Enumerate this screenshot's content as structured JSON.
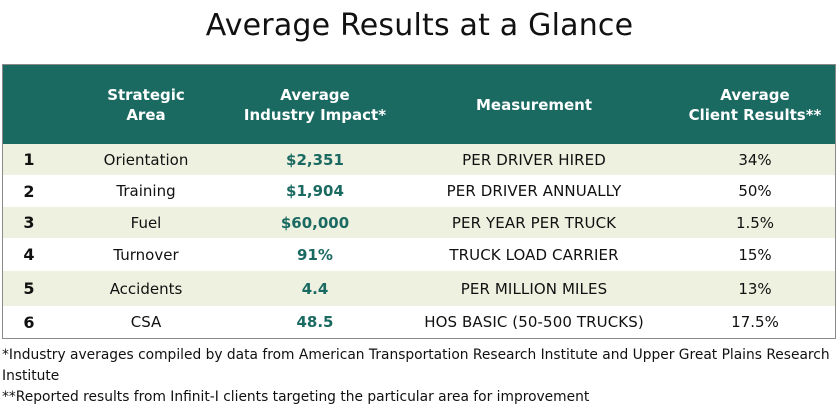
{
  "title": "Average Results at a Glance",
  "table": {
    "headers": {
      "strategic_area": "Strategic\nArea",
      "industry_impact": "Average\nIndustry Impact*",
      "measurement": "Measurement",
      "client_results": "Average\nClient Results**"
    },
    "rows": [
      {
        "num": "1",
        "area": "Orientation",
        "impact": "$2,351",
        "measurement": "PER DRIVER HIRED",
        "client": "34%"
      },
      {
        "num": "2",
        "area": "Training",
        "impact": "$1,904",
        "measurement": "PER DRIVER ANNUALLY",
        "client": "50%"
      },
      {
        "num": "3",
        "area": "Fuel",
        "impact": "$60,000",
        "measurement": "PER YEAR PER TRUCK",
        "client": "1.5%"
      },
      {
        "num": "4",
        "area": "Turnover",
        "impact": "91%",
        "measurement": "TRUCK LOAD CARRIER",
        "client": "15%"
      },
      {
        "num": "5",
        "area": "Accidents",
        "impact": "4.4",
        "measurement": "PER MILLION MILES",
        "client": "13%"
      },
      {
        "num": "6",
        "area": "CSA",
        "impact": "48.5",
        "measurement": "HOS BASIC (50-500 TRUCKS)",
        "client": "17.5%"
      }
    ]
  },
  "footnotes": {
    "note1": "*Industry averages compiled by data from American Transportation Research Institute and Upper Great Plains Research Institute",
    "note2": "**Reported results from Infinit-I clients targeting the particular area for improvement"
  },
  "colors": {
    "header_bg": "#1b6a62",
    "impact_text": "#1b6a62",
    "alt_row_bg": "#eef1e0"
  }
}
